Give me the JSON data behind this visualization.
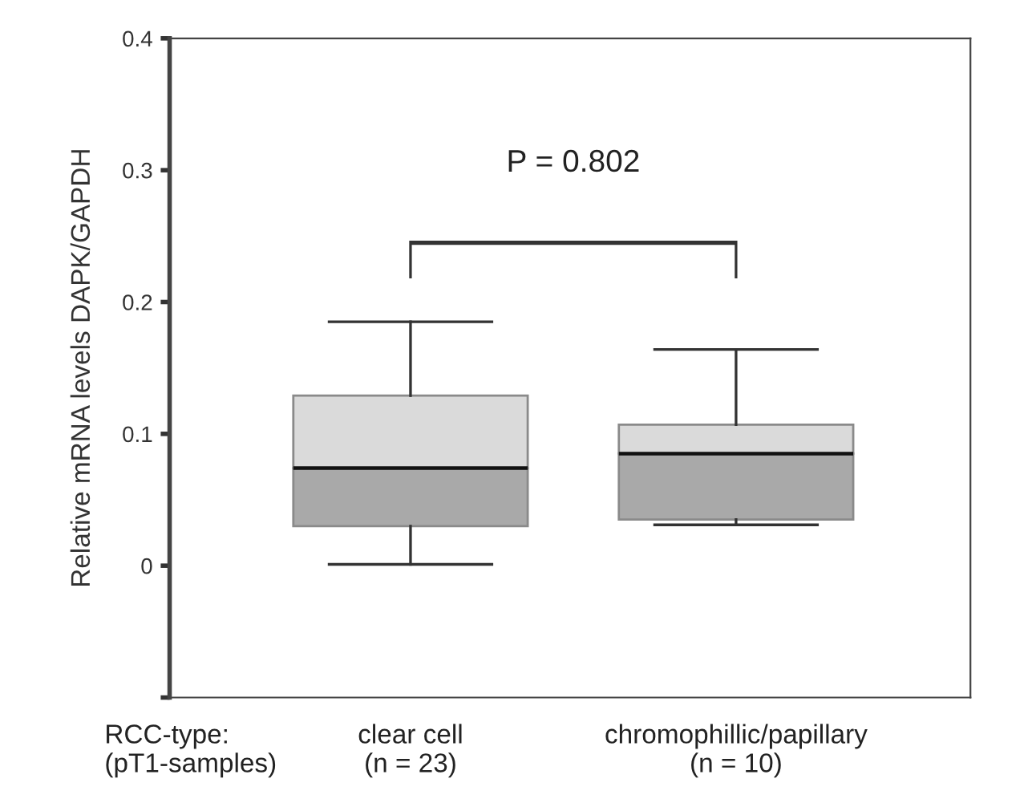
{
  "chart_data": {
    "type": "box",
    "categories": [
      "clear cell\n(n = 23)",
      "chromophillic/papillary\n(n = 10)"
    ],
    "boxes": [
      {
        "low": 0.001,
        "q1": 0.03,
        "median": 0.074,
        "q3": 0.129,
        "high": 0.185
      },
      {
        "low": 0.031,
        "q1": 0.035,
        "median": 0.085,
        "q3": 0.107,
        "high": 0.164
      }
    ],
    "colors": [
      [
        "#a9a9a9",
        "#dadada"
      ],
      [
        "#a9a9a9",
        "#dadada"
      ]
    ],
    "xlabel": "RCC-type:\n(pT1-samples)",
    "ylabel": "Relative mRNA levels DAPK/GAPDH",
    "ylim": [
      -0.1,
      0.4
    ],
    "yticks": [
      {
        "value": -0.1,
        "label": null
      },
      0,
      0.1,
      0.2,
      0.3,
      0.4
    ],
    "annotations": [
      "P = 0.802"
    ],
    "grid": false
  }
}
